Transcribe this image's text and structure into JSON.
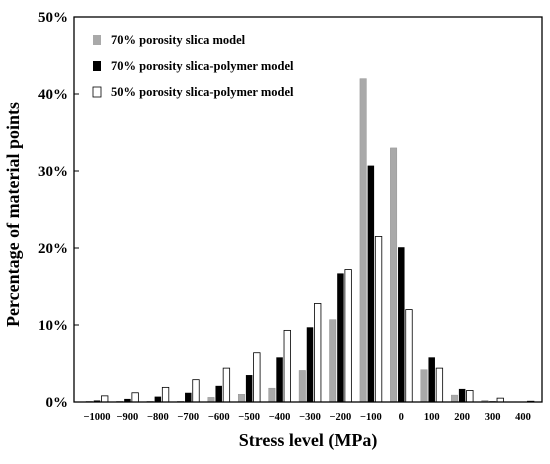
{
  "chart_data": {
    "type": "bar",
    "title": "",
    "xlabel": "Stress level (MPa)",
    "ylabel": "Percentage of material points",
    "ylim": [
      0,
      50
    ],
    "yticks": [
      0,
      10,
      20,
      30,
      40,
      50
    ],
    "ytick_labels": [
      "0%",
      "10%",
      "20%",
      "30%",
      "40%",
      "50%"
    ],
    "grid": false,
    "legend_position": "top-left",
    "categories": [
      "−1000",
      "−900",
      "−800",
      "−700",
      "−600",
      "−500",
      "−400",
      "−300",
      "−200",
      "−100",
      "0",
      "100",
      "200",
      "300",
      "400"
    ],
    "series": [
      {
        "name": "70% porosity slica model",
        "color": "#a9a9a9",
        "fill": "gray",
        "values": [
          0.1,
          0.1,
          0.1,
          0.1,
          0.6,
          1.0,
          1.8,
          4.1,
          10.7,
          42.0,
          33.0,
          4.2,
          0.9,
          0.2,
          0.0
        ]
      },
      {
        "name": "70% porosity slica-polymer model",
        "color": "#000000",
        "fill": "black",
        "values": [
          0.2,
          0.4,
          0.7,
          1.2,
          2.1,
          3.5,
          5.8,
          9.7,
          16.7,
          30.7,
          20.1,
          5.8,
          1.7,
          0.1,
          0.0
        ]
      },
      {
        "name": "50% porosity slica-polymer model",
        "color": "#ffffff",
        "fill": "white",
        "values": [
          0.8,
          1.2,
          1.9,
          2.9,
          4.4,
          6.4,
          9.3,
          12.8,
          17.2,
          21.5,
          12.0,
          4.4,
          1.5,
          0.5,
          0.1
        ]
      }
    ]
  }
}
